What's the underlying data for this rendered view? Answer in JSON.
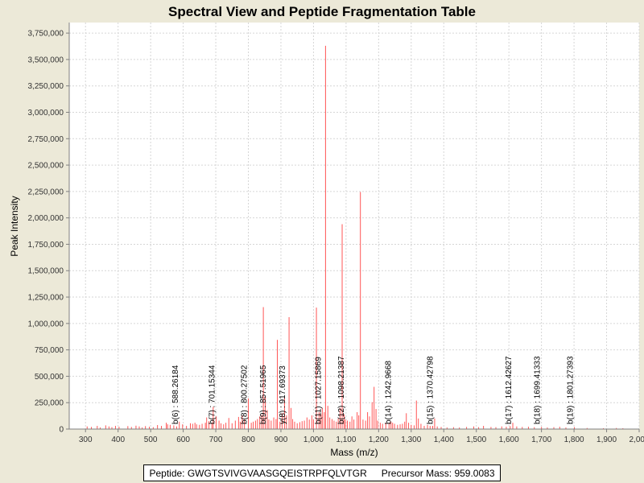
{
  "chart_data": {
    "type": "spectrum",
    "title": "Spectral View and Peptide Fragmentation Table",
    "xlabel": "Mass (m/z)",
    "ylabel": "Peak Intensity",
    "xlim": [
      250,
      2000
    ],
    "ylim": [
      0,
      3850000
    ],
    "xticks": [
      300,
      400,
      500,
      600,
      700,
      800,
      900,
      1000,
      1100,
      1200,
      1300,
      1400,
      1500,
      1600,
      1700,
      1800,
      1900,
      2000
    ],
    "xtick_labels": [
      "300",
      "400",
      "500",
      "600",
      "700",
      "800",
      "900",
      "1,000",
      "1,100",
      "1,200",
      "1,300",
      "1,400",
      "1,500",
      "1,600",
      "1,700",
      "1,800",
      "1,900",
      "2,000"
    ],
    "yticks": [
      0,
      250000,
      500000,
      750000,
      1000000,
      1250000,
      1500000,
      1750000,
      2000000,
      2250000,
      2500000,
      2750000,
      3000000,
      3250000,
      3500000,
      3750000
    ],
    "ytick_labels": [
      "0",
      "250,000",
      "500,000",
      "750,000",
      "1,000,000",
      "1,250,000",
      "1,500,000",
      "1,750,000",
      "2,000,000",
      "2,250,000",
      "2,500,000",
      "2,750,000",
      "3,000,000",
      "3,250,000",
      "3,500,000",
      "3,750,000"
    ],
    "grid": true,
    "peak_color": "#ff5555",
    "peaks": [
      [
        305,
        25000
      ],
      [
        318,
        20000
      ],
      [
        336,
        30000
      ],
      [
        345,
        15000
      ],
      [
        362,
        35000
      ],
      [
        372,
        25000
      ],
      [
        381,
        18000
      ],
      [
        392,
        30000
      ],
      [
        403,
        22000
      ],
      [
        430,
        28000
      ],
      [
        441,
        20000
      ],
      [
        455,
        32000
      ],
      [
        465,
        25000
      ],
      [
        474,
        15000
      ],
      [
        484,
        28000
      ],
      [
        496,
        22000
      ],
      [
        508,
        18000
      ],
      [
        521,
        38000
      ],
      [
        533,
        30000
      ],
      [
        548,
        60000
      ],
      [
        552,
        45000
      ],
      [
        560,
        40000
      ],
      [
        571,
        35000
      ],
      [
        580,
        25000
      ],
      [
        588,
        70000
      ],
      [
        598,
        45000
      ],
      [
        610,
        30000
      ],
      [
        622,
        55000
      ],
      [
        629,
        50000
      ],
      [
        636,
        60000
      ],
      [
        641,
        45000
      ],
      [
        650,
        40000
      ],
      [
        658,
        50000
      ],
      [
        668,
        60000
      ],
      [
        672,
        110000
      ],
      [
        679,
        75000
      ],
      [
        688,
        60000
      ],
      [
        692,
        210000
      ],
      [
        701,
        120000
      ],
      [
        710,
        80000
      ],
      [
        716,
        55000
      ],
      [
        724,
        45000
      ],
      [
        731,
        60000
      ],
      [
        740,
        105000
      ],
      [
        750,
        55000
      ],
      [
        760,
        80000
      ],
      [
        770,
        115000
      ],
      [
        775,
        70000
      ],
      [
        781,
        130000
      ],
      [
        788,
        90000
      ],
      [
        800,
        290000
      ],
      [
        809,
        60000
      ],
      [
        815,
        70000
      ],
      [
        822,
        80000
      ],
      [
        828,
        95000
      ],
      [
        835,
        120000
      ],
      [
        841,
        135000
      ],
      [
        846,
        1155000
      ],
      [
        852,
        310000
      ],
      [
        858,
        180000
      ],
      [
        863,
        90000
      ],
      [
        870,
        80000
      ],
      [
        878,
        110000
      ],
      [
        885,
        95000
      ],
      [
        889,
        845000
      ],
      [
        897,
        70000
      ],
      [
        904,
        150000
      ],
      [
        911,
        300000
      ],
      [
        917,
        130000
      ],
      [
        925,
        1060000
      ],
      [
        931,
        200000
      ],
      [
        936,
        95000
      ],
      [
        942,
        70000
      ],
      [
        950,
        55000
      ],
      [
        958,
        65000
      ],
      [
        965,
        75000
      ],
      [
        972,
        80000
      ],
      [
        980,
        110000
      ],
      [
        987,
        90000
      ],
      [
        995,
        130000
      ],
      [
        1000,
        90000
      ],
      [
        1009,
        1150000
      ],
      [
        1017,
        160000
      ],
      [
        1023,
        140000
      ],
      [
        1027,
        200000
      ],
      [
        1033,
        160000
      ],
      [
        1037,
        3630000
      ],
      [
        1044,
        220000
      ],
      [
        1050,
        110000
      ],
      [
        1057,
        95000
      ],
      [
        1063,
        80000
      ],
      [
        1070,
        70000
      ],
      [
        1076,
        100000
      ],
      [
        1082,
        200000
      ],
      [
        1088,
        1940000
      ],
      [
        1094,
        140000
      ],
      [
        1098,
        90000
      ],
      [
        1104,
        80000
      ],
      [
        1112,
        70000
      ],
      [
        1118,
        120000
      ],
      [
        1124,
        90000
      ],
      [
        1134,
        160000
      ],
      [
        1139,
        130000
      ],
      [
        1144,
        2245000
      ],
      [
        1152,
        90000
      ],
      [
        1160,
        80000
      ],
      [
        1166,
        160000
      ],
      [
        1172,
        120000
      ],
      [
        1180,
        255000
      ],
      [
        1186,
        400000
      ],
      [
        1192,
        190000
      ],
      [
        1197,
        80000
      ],
      [
        1205,
        60000
      ],
      [
        1212,
        50000
      ],
      [
        1222,
        60000
      ],
      [
        1232,
        60000
      ],
      [
        1238,
        70000
      ],
      [
        1243,
        60000
      ],
      [
        1249,
        50000
      ],
      [
        1258,
        40000
      ],
      [
        1266,
        45000
      ],
      [
        1273,
        50000
      ],
      [
        1280,
        70000
      ],
      [
        1285,
        150000
      ],
      [
        1292,
        60000
      ],
      [
        1300,
        40000
      ],
      [
        1309,
        35000
      ],
      [
        1316,
        270000
      ],
      [
        1322,
        100000
      ],
      [
        1330,
        50000
      ],
      [
        1340,
        30000
      ],
      [
        1350,
        40000
      ],
      [
        1358,
        30000
      ],
      [
        1366,
        30000
      ],
      [
        1372,
        100000
      ],
      [
        1380,
        25000
      ],
      [
        1392,
        20000
      ],
      [
        1410,
        15000
      ],
      [
        1430,
        18000
      ],
      [
        1448,
        15000
      ],
      [
        1470,
        20000
      ],
      [
        1492,
        25000
      ],
      [
        1507,
        18000
      ],
      [
        1522,
        30000
      ],
      [
        1545,
        20000
      ],
      [
        1560,
        18000
      ],
      [
        1578,
        25000
      ],
      [
        1592,
        22000
      ],
      [
        1604,
        28000
      ],
      [
        1612,
        60000
      ],
      [
        1624,
        25000
      ],
      [
        1641,
        20000
      ],
      [
        1660,
        22000
      ],
      [
        1678,
        18000
      ],
      [
        1700,
        20000
      ],
      [
        1718,
        15000
      ],
      [
        1738,
        18000
      ],
      [
        1756,
        22000
      ],
      [
        1775,
        15000
      ],
      [
        1801,
        18000
      ],
      [
        1840,
        10000
      ],
      [
        1890,
        8000
      ],
      [
        1930,
        10000
      ],
      [
        1950,
        8000
      ]
    ],
    "annotations": [
      {
        "label": "b(6) : 588.26184",
        "x": 588.26184
      },
      {
        "label": "b(7) : 701.15344",
        "x": 701.15344
      },
      {
        "label": "b(8) : 800.27502",
        "x": 800.27502
      },
      {
        "label": "b(9) : 857.51965",
        "x": 857.51965
      },
      {
        "label": "y(8) : 917.69373",
        "x": 917.69373
      },
      {
        "label": "b(11) : 1027.15869",
        "x": 1027.15869
      },
      {
        "label": "b(12) : 1098.21387",
        "x": 1098.21387
      },
      {
        "label": "b(14) : 1242.9668",
        "x": 1242.9668
      },
      {
        "label": "b(15) : 1370.42798",
        "x": 1370.42798
      },
      {
        "label": "b(17) : 1612.42627",
        "x": 1612.42627
      },
      {
        "label": "b(18) : 1699.41333",
        "x": 1699.41333
      },
      {
        "label": "b(19) : 1801.27393",
        "x": 1801.27393
      }
    ]
  },
  "info": {
    "peptide_label": "Peptide: GWGTSVIVGVAASGQEISTRPFQLVTGR",
    "precursor_label": "Precursor Mass: 959.0083"
  }
}
